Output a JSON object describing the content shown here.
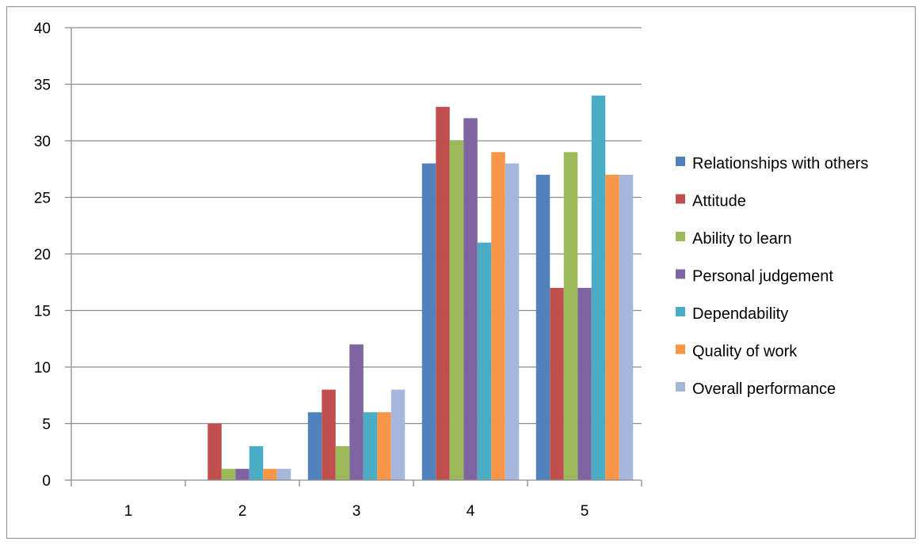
{
  "chart_data": {
    "type": "bar",
    "title": "",
    "xlabel": "",
    "ylabel": "",
    "categories": [
      "1",
      "2",
      "3",
      "4",
      "5"
    ],
    "ylim": [
      0,
      40
    ],
    "yticks": [
      0,
      5,
      10,
      15,
      20,
      25,
      30,
      35,
      40
    ],
    "grid": true,
    "legend_position": "right",
    "series": [
      {
        "name": "Relationships with others",
        "color": "#4f81bd",
        "values": [
          0,
          0,
          6,
          28,
          27
        ]
      },
      {
        "name": "Attitude",
        "color": "#c0504d",
        "values": [
          0,
          5,
          8,
          33,
          17
        ]
      },
      {
        "name": "Ability to learn",
        "color": "#9bbb59",
        "values": [
          0,
          1,
          3,
          30,
          29
        ]
      },
      {
        "name": "Personal judgement",
        "color": "#8064a2",
        "values": [
          0,
          1,
          12,
          32,
          17
        ]
      },
      {
        "name": "Dependability",
        "color": "#4bacc6",
        "values": [
          0,
          3,
          6,
          21,
          34
        ]
      },
      {
        "name": "Quality of work",
        "color": "#f79646",
        "values": [
          0,
          1,
          6,
          29,
          27
        ]
      },
      {
        "name": "Overall performance",
        "color": "#a5b8dc",
        "values": [
          0,
          1,
          8,
          28,
          27
        ]
      }
    ]
  }
}
